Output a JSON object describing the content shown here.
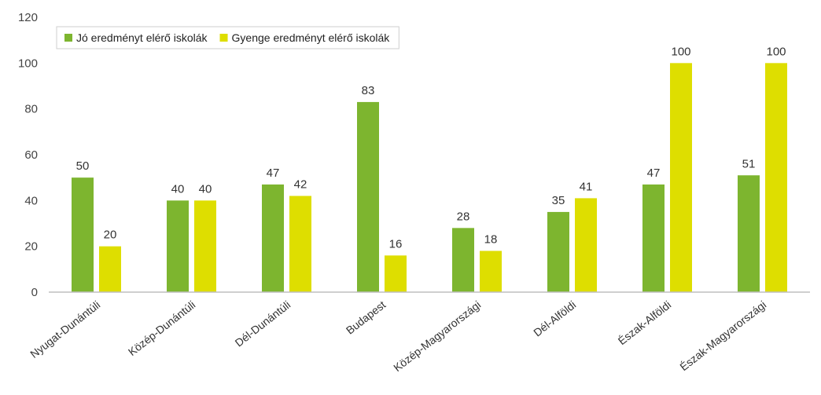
{
  "chart_data": {
    "type": "bar",
    "title": "",
    "xlabel": "",
    "ylabel": "",
    "ylim": [
      0,
      120
    ],
    "yticks": [
      0,
      20,
      40,
      60,
      80,
      100,
      120
    ],
    "grid": false,
    "legend_position": "top-left",
    "categories": [
      "Nyugat-Dunántúli",
      "Közép-Dunántúli",
      "Dél-Dunántúli",
      "Budapest",
      "Közép-Magyarországi",
      "Dél-Alföldi",
      "Észak-Alföldi",
      "Észak-Magyarországi"
    ],
    "series": [
      {
        "name": "Jó eredményt elérő iskolák",
        "color": "#7db52f",
        "values": [
          50,
          40,
          47,
          83,
          28,
          35,
          47,
          51
        ]
      },
      {
        "name": "Gyenge eredményt elérő iskolák",
        "color": "#dede00",
        "values": [
          20,
          40,
          42,
          16,
          18,
          41,
          100,
          100
        ]
      }
    ]
  }
}
